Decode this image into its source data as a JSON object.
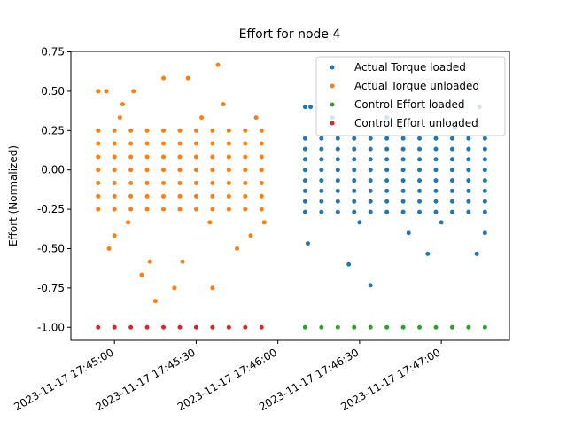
{
  "chart_data": {
    "type": "scatter",
    "title": "Effort for node 4",
    "y_label": "Effort (Normalized)",
    "xlim": [
      "2023-11-17 17:44:44",
      "2023-11-17 17:47:25"
    ],
    "xticks": [
      "2023-11-17 17:45:00",
      "2023-11-17 17:45:30",
      "2023-11-17 17:46:00",
      "2023-11-17 17:46:30",
      "2023-11-17 17:47:00"
    ],
    "ylim": [
      -1.083,
      0.753
    ],
    "yticks": [
      0.75,
      {
        "value": 0.5,
        "label": "0.50"
      },
      0.25,
      {
        "value": 0,
        "label": "0.00"
      },
      -0.25,
      {
        "value": -0.5,
        "label": "-0.50"
      },
      -0.75,
      {
        "value": -1,
        "label": "-1.00"
      }
    ],
    "legend": "upper right",
    "series": [
      {
        "name": "Actual Torque loaded",
        "color": "#1f77b4",
        "x": [
          "2023-11-17 17:46:10",
          "2023-11-17 17:46:12",
          "2023-11-17 17:46:20",
          "2023-11-17 17:46:40",
          "2023-11-17 17:47:14",
          "2023-11-17 17:46:11",
          "2023-11-17 17:46:26",
          "2023-11-17 17:46:34",
          "2023-11-17 17:46:55",
          "2023-11-17 17:47:13",
          "2023-11-17 17:46:48",
          "2023-11-17 17:47:16",
          "2023-11-17 17:46:30",
          "2023-11-17 17:47:00",
          "2023-11-17 17:46:45",
          "2023-11-17 17:47:05",
          "2023-11-17 17:46:10",
          "2023-11-17 17:46:16",
          "2023-11-17 17:46:22",
          "2023-11-17 17:46:28",
          "2023-11-17 17:46:34",
          "2023-11-17 17:46:40",
          "2023-11-17 17:46:46",
          "2023-11-17 17:46:52",
          "2023-11-17 17:46:58",
          "2023-11-17 17:47:04",
          "2023-11-17 17:47:10",
          "2023-11-17 17:47:16",
          "2023-11-17 17:46:10",
          "2023-11-17 17:46:16",
          "2023-11-17 17:46:22",
          "2023-11-17 17:46:28",
          "2023-11-17 17:46:34",
          "2023-11-17 17:46:40",
          "2023-11-17 17:46:46",
          "2023-11-17 17:46:52",
          "2023-11-17 17:46:58",
          "2023-11-17 17:47:04",
          "2023-11-17 17:47:10",
          "2023-11-17 17:47:16",
          "2023-11-17 17:46:10",
          "2023-11-17 17:46:16",
          "2023-11-17 17:46:22",
          "2023-11-17 17:46:28",
          "2023-11-17 17:46:34",
          "2023-11-17 17:46:40",
          "2023-11-17 17:46:46",
          "2023-11-17 17:46:52",
          "2023-11-17 17:46:58",
          "2023-11-17 17:47:04",
          "2023-11-17 17:47:10",
          "2023-11-17 17:47:16",
          "2023-11-17 17:46:10",
          "2023-11-17 17:46:16",
          "2023-11-17 17:46:22",
          "2023-11-17 17:46:28",
          "2023-11-17 17:46:34",
          "2023-11-17 17:46:40",
          "2023-11-17 17:46:46",
          "2023-11-17 17:46:52",
          "2023-11-17 17:46:58",
          "2023-11-17 17:47:04",
          "2023-11-17 17:47:10",
          "2023-11-17 17:47:16",
          "2023-11-17 17:46:10",
          "2023-11-17 17:46:16",
          "2023-11-17 17:46:22",
          "2023-11-17 17:46:28",
          "2023-11-17 17:46:34",
          "2023-11-17 17:46:40",
          "2023-11-17 17:46:46",
          "2023-11-17 17:46:52",
          "2023-11-17 17:46:58",
          "2023-11-17 17:47:04",
          "2023-11-17 17:47:10",
          "2023-11-17 17:47:16",
          "2023-11-17 17:46:10",
          "2023-11-17 17:46:16",
          "2023-11-17 17:46:22",
          "2023-11-17 17:46:28",
          "2023-11-17 17:46:34",
          "2023-11-17 17:46:40",
          "2023-11-17 17:46:46",
          "2023-11-17 17:46:52",
          "2023-11-17 17:46:58",
          "2023-11-17 17:47:04",
          "2023-11-17 17:47:10",
          "2023-11-17 17:47:16",
          "2023-11-17 17:46:10",
          "2023-11-17 17:46:16",
          "2023-11-17 17:46:22",
          "2023-11-17 17:46:28",
          "2023-11-17 17:46:34",
          "2023-11-17 17:46:40",
          "2023-11-17 17:46:46",
          "2023-11-17 17:46:52",
          "2023-11-17 17:46:58",
          "2023-11-17 17:47:04",
          "2023-11-17 17:47:10",
          "2023-11-17 17:47:16",
          "2023-11-17 17:46:10",
          "2023-11-17 17:46:16",
          "2023-11-17 17:46:22",
          "2023-11-17 17:46:28",
          "2023-11-17 17:46:34",
          "2023-11-17 17:46:40",
          "2023-11-17 17:46:46",
          "2023-11-17 17:46:52",
          "2023-11-17 17:46:58",
          "2023-11-17 17:47:04",
          "2023-11-17 17:47:10",
          "2023-11-17 17:47:16"
        ],
        "values": [
          0.4,
          0.4,
          0.333,
          0.333,
          0.4,
          -0.467,
          -0.6,
          -0.733,
          -0.533,
          -0.533,
          -0.4,
          -0.4,
          -0.333,
          -0.333,
          0.267,
          0.267,
          0.2,
          0.2,
          0.2,
          0.2,
          0.2,
          0.2,
          0.2,
          0.2,
          0.2,
          0.2,
          0.2,
          0.2,
          0.133,
          0.133,
          0.133,
          0.133,
          0.133,
          0.133,
          0.133,
          0.133,
          0.133,
          0.133,
          0.133,
          0.133,
          0.067,
          0.067,
          0.067,
          0.067,
          0.067,
          0.067,
          0.067,
          0.067,
          0.067,
          0.067,
          0.067,
          0.067,
          0,
          0,
          0,
          0,
          0,
          0,
          0,
          0,
          0,
          0,
          0,
          0,
          -0.067,
          -0.067,
          -0.067,
          -0.067,
          -0.067,
          -0.067,
          -0.067,
          -0.067,
          -0.067,
          -0.067,
          -0.067,
          -0.067,
          -0.133,
          -0.133,
          -0.133,
          -0.133,
          -0.133,
          -0.133,
          -0.133,
          -0.133,
          -0.133,
          -0.133,
          -0.133,
          -0.133,
          -0.2,
          -0.2,
          -0.2,
          -0.2,
          -0.2,
          -0.2,
          -0.2,
          -0.2,
          -0.2,
          -0.2,
          -0.2,
          -0.2,
          -0.267,
          -0.267,
          -0.267,
          -0.267,
          -0.267,
          -0.267,
          -0.267,
          -0.267,
          -0.267,
          -0.267,
          -0.267,
          -0.267
        ]
      },
      {
        "name": "Actual Torque unloaded",
        "color": "#ff7f0e",
        "x": [
          "2023-11-17 17:44:54",
          "2023-11-17 17:44:57",
          "2023-11-17 17:45:07",
          "2023-11-17 17:45:18",
          "2023-11-17 17:45:27",
          "2023-11-17 17:45:38",
          "2023-11-17 17:45:03",
          "2023-11-17 17:45:40",
          "2023-11-17 17:45:10",
          "2023-11-17 17:45:15",
          "2023-11-17 17:45:22",
          "2023-11-17 17:45:36",
          "2023-11-17 17:45:13",
          "2023-11-17 17:45:25",
          "2023-11-17 17:44:58",
          "2023-11-17 17:45:45",
          "2023-11-17 17:45:00",
          "2023-11-17 17:45:50",
          "2023-11-17 17:45:02",
          "2023-11-17 17:45:32",
          "2023-11-17 17:45:52",
          "2023-11-17 17:45:05",
          "2023-11-17 17:45:35",
          "2023-11-17 17:45:55",
          "2023-11-17 17:44:54",
          "2023-11-17 17:45:00",
          "2023-11-17 17:45:06",
          "2023-11-17 17:45:12",
          "2023-11-17 17:45:18",
          "2023-11-17 17:45:24",
          "2023-11-17 17:45:30",
          "2023-11-17 17:45:36",
          "2023-11-17 17:45:42",
          "2023-11-17 17:45:48",
          "2023-11-17 17:45:54",
          "2023-11-17 17:44:54",
          "2023-11-17 17:45:00",
          "2023-11-17 17:45:06",
          "2023-11-17 17:45:12",
          "2023-11-17 17:45:18",
          "2023-11-17 17:45:24",
          "2023-11-17 17:45:30",
          "2023-11-17 17:45:36",
          "2023-11-17 17:45:42",
          "2023-11-17 17:45:48",
          "2023-11-17 17:45:54",
          "2023-11-17 17:44:54",
          "2023-11-17 17:45:00",
          "2023-11-17 17:45:06",
          "2023-11-17 17:45:12",
          "2023-11-17 17:45:18",
          "2023-11-17 17:45:24",
          "2023-11-17 17:45:30",
          "2023-11-17 17:45:36",
          "2023-11-17 17:45:42",
          "2023-11-17 17:45:48",
          "2023-11-17 17:45:54",
          "2023-11-17 17:44:54",
          "2023-11-17 17:45:00",
          "2023-11-17 17:45:06",
          "2023-11-17 17:45:12",
          "2023-11-17 17:45:18",
          "2023-11-17 17:45:24",
          "2023-11-17 17:45:30",
          "2023-11-17 17:45:36",
          "2023-11-17 17:45:42",
          "2023-11-17 17:45:48",
          "2023-11-17 17:45:54",
          "2023-11-17 17:44:54",
          "2023-11-17 17:45:00",
          "2023-11-17 17:45:06",
          "2023-11-17 17:45:12",
          "2023-11-17 17:45:18",
          "2023-11-17 17:45:24",
          "2023-11-17 17:45:30",
          "2023-11-17 17:45:36",
          "2023-11-17 17:45:42",
          "2023-11-17 17:45:48",
          "2023-11-17 17:45:54",
          "2023-11-17 17:44:54",
          "2023-11-17 17:45:00",
          "2023-11-17 17:45:06",
          "2023-11-17 17:45:12",
          "2023-11-17 17:45:18",
          "2023-11-17 17:45:24",
          "2023-11-17 17:45:30",
          "2023-11-17 17:45:36",
          "2023-11-17 17:45:42",
          "2023-11-17 17:45:48",
          "2023-11-17 17:45:54",
          "2023-11-17 17:44:54",
          "2023-11-17 17:45:00",
          "2023-11-17 17:45:06",
          "2023-11-17 17:45:12",
          "2023-11-17 17:45:18",
          "2023-11-17 17:45:24",
          "2023-11-17 17:45:30",
          "2023-11-17 17:45:36",
          "2023-11-17 17:45:42",
          "2023-11-17 17:45:48",
          "2023-11-17 17:45:54"
        ],
        "values": [
          0.5,
          0.5,
          0.5,
          0.583,
          0.583,
          0.667,
          0.417,
          0.417,
          -0.667,
          -0.833,
          -0.75,
          -0.75,
          -0.583,
          -0.583,
          -0.5,
          -0.5,
          -0.417,
          -0.417,
          0.333,
          0.333,
          0.333,
          -0.333,
          -0.333,
          -0.333,
          0.25,
          0.25,
          0.25,
          0.25,
          0.25,
          0.25,
          0.25,
          0.25,
          0.25,
          0.25,
          0.25,
          0.167,
          0.167,
          0.167,
          0.167,
          0.167,
          0.167,
          0.167,
          0.167,
          0.167,
          0.167,
          0.167,
          0.083,
          0.083,
          0.083,
          0.083,
          0.083,
          0.083,
          0.083,
          0.083,
          0.083,
          0.083,
          0.083,
          0,
          0,
          0,
          0,
          0,
          0,
          0,
          0,
          0,
          0,
          0,
          -0.083,
          -0.083,
          -0.083,
          -0.083,
          -0.083,
          -0.083,
          -0.083,
          -0.083,
          -0.083,
          -0.083,
          -0.083,
          -0.167,
          -0.167,
          -0.167,
          -0.167,
          -0.167,
          -0.167,
          -0.167,
          -0.167,
          -0.167,
          -0.167,
          -0.167,
          -0.25,
          -0.25,
          -0.25,
          -0.25,
          -0.25,
          -0.25,
          -0.25,
          -0.25,
          -0.25,
          -0.25,
          -0.25
        ]
      },
      {
        "name": "Control Effort loaded",
        "color": "#2ca02c",
        "x": [
          "2023-11-17 17:46:10",
          "2023-11-17 17:46:16",
          "2023-11-17 17:46:22",
          "2023-11-17 17:46:28",
          "2023-11-17 17:46:34",
          "2023-11-17 17:46:40",
          "2023-11-17 17:46:46",
          "2023-11-17 17:46:52",
          "2023-11-17 17:46:58",
          "2023-11-17 17:47:04",
          "2023-11-17 17:47:10",
          "2023-11-17 17:47:16"
        ],
        "values": [
          -1,
          -1,
          -1,
          -1,
          -1,
          -1,
          -1,
          -1,
          -1,
          -1,
          -1,
          -1
        ]
      },
      {
        "name": "Control Effort unloaded",
        "color": "#d62728",
        "x": [
          "2023-11-17 17:44:54",
          "2023-11-17 17:45:00",
          "2023-11-17 17:45:06",
          "2023-11-17 17:45:12",
          "2023-11-17 17:45:18",
          "2023-11-17 17:45:24",
          "2023-11-17 17:45:30",
          "2023-11-17 17:45:36",
          "2023-11-17 17:45:42",
          "2023-11-17 17:45:48",
          "2023-11-17 17:45:54"
        ],
        "values": [
          -1,
          -1,
          -1,
          -1,
          -1,
          -1,
          -1,
          -1,
          -1,
          -1,
          -1
        ]
      }
    ]
  }
}
